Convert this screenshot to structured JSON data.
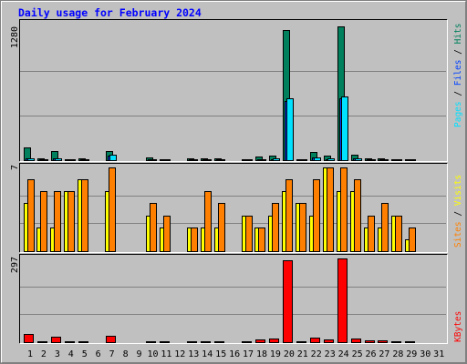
{
  "chart_data": {
    "type": "bar",
    "title": "Daily usage for February 2024",
    "categories": [
      "1",
      "2",
      "3",
      "4",
      "5",
      "6",
      "7",
      "8",
      "9",
      "10",
      "11",
      "12",
      "13",
      "14",
      "15",
      "16",
      "17",
      "18",
      "19",
      "20",
      "21",
      "22",
      "23",
      "24",
      "25",
      "26",
      "27",
      "28",
      "29",
      "30",
      "31"
    ],
    "weekend_days": [
      3,
      4,
      10,
      11,
      17,
      18,
      24,
      25,
      31
    ],
    "weekend_color": "#00805C",
    "grid": true,
    "legend_position": "right",
    "legend_separator": "/",
    "panels": [
      {
        "ylim": [
          0,
          1280
        ],
        "series": [
          {
            "name": "Hits",
            "color": "#00805C",
            "values": [
              122,
              15,
              90,
              10,
              18,
              0,
              90,
              0,
              0,
              22,
              12,
              0,
              18,
              18,
              15,
              0,
              12,
              38,
              45,
              1245,
              10,
              75,
              40,
              1280,
              55,
              15,
              18,
              12,
              12,
              null,
              null
            ]
          },
          {
            "name": "Files",
            "color": "#0040FF",
            "values": [
              16,
              4,
              16,
              3,
              5,
              0,
              45,
              0,
              0,
              7,
              4,
              0,
              5,
              5,
              4,
              0,
              3,
              10,
              12,
              570,
              3,
              22,
              12,
              590,
              16,
              4,
              5,
              3,
              3,
              null,
              null
            ]
          },
          {
            "name": "Pages",
            "color": "#00E0FF",
            "values": [
              18,
              5,
              18,
              4,
              6,
              0,
              52,
              0,
              0,
              8,
              5,
              0,
              6,
              6,
              5,
              0,
              4,
              12,
              15,
              592,
              4,
              25,
              14,
              610,
              18,
              5,
              6,
              4,
              4,
              null,
              null
            ]
          }
        ]
      },
      {
        "ylim": [
          0,
          7
        ],
        "series": [
          {
            "name": "Visits",
            "color": "#FFFF00",
            "values": [
              4,
              2,
              2,
              5,
              6,
              0,
              5,
              0,
              0,
              3,
              2,
              0,
              2,
              2,
              2,
              0,
              3,
              2,
              3,
              5,
              4,
              3,
              7,
              5,
              5,
              2,
              2,
              3,
              1,
              null,
              null
            ]
          },
          {
            "name": "Sites",
            "color": "#FF8000",
            "values": [
              6,
              5,
              5,
              5,
              6,
              0,
              7,
              0,
              0,
              4,
              3,
              0,
              2,
              5,
              4,
              0,
              3,
              2,
              4,
              6,
              4,
              6,
              7,
              7,
              6,
              3,
              4,
              3,
              2,
              null,
              null
            ]
          }
        ]
      },
      {
        "ylim": [
          0,
          297
        ],
        "series": [
          {
            "name": "KBytes",
            "color": "#FF0000",
            "values": [
              29,
              4,
              20,
              4,
              4,
              0,
              23,
              0,
              0,
              4,
              4,
              0,
              4,
              4,
              4,
              0,
              4,
              10,
              13,
              290,
              4,
              16,
              10,
              297,
              13,
              5,
              7,
              4,
              4,
              null,
              null
            ]
          }
        ]
      }
    ]
  }
}
